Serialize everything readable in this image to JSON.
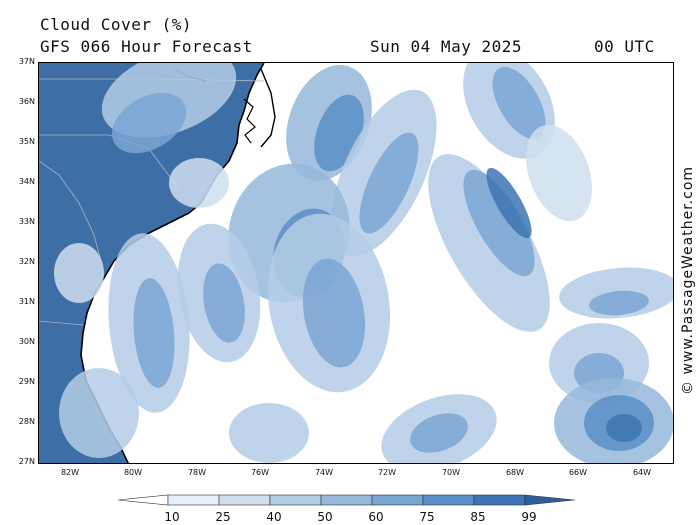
{
  "header": {
    "title": "Cloud Cover (%)",
    "model_line": "GFS 066 Hour Forecast",
    "valid_date": "Sun 04 May 2025",
    "valid_time": "00 UTC"
  },
  "axes": {
    "lat_labels": [
      "37N",
      "36N",
      "35N",
      "34N",
      "33N",
      "32N",
      "31N",
      "30N",
      "29N",
      "28N",
      "27N"
    ],
    "lon_labels": [
      "82W",
      "80W",
      "78W",
      "76W",
      "74W",
      "72W",
      "70W",
      "68W",
      "66W",
      "64W"
    ]
  },
  "credit": "© www.PassageWeather.com",
  "legend": {
    "thresholds": [
      "10",
      "25",
      "40",
      "50",
      "60",
      "75",
      "85",
      "99"
    ],
    "colors": [
      "#ffffff",
      "#e7eff8",
      "#cfdff0",
      "#b4cde6",
      "#95b8dc",
      "#7aa6d3",
      "#5a8fc7",
      "#3e74b3",
      "#2c5f97"
    ]
  },
  "map": {
    "extent": {
      "lon_min": -83,
      "lon_max": -63,
      "lat_min": 27,
      "lat_max": 37
    },
    "land_color": "#3e6ea6",
    "coastline_color": "#000000",
    "border_color": "#a9b4c4",
    "cloud_levels": [
      "#e7eff8",
      "#cfdff0",
      "#b4cde6",
      "#95b8dc",
      "#7aa6d3",
      "#5a8fc7",
      "#3e74b3"
    ]
  }
}
